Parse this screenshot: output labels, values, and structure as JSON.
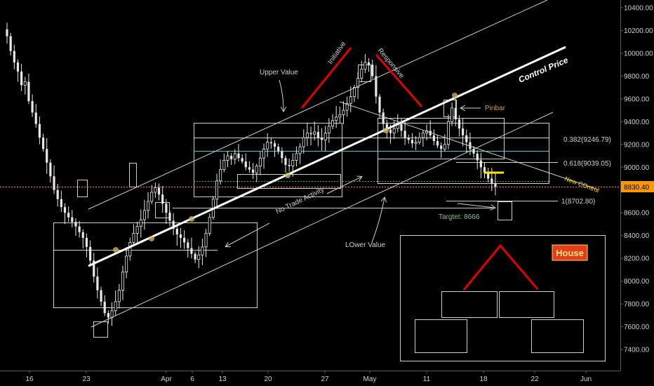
{
  "chart_data": {
    "type": "candlestick",
    "y_axis": {
      "ticks": [
        "10400.00",
        "10200.00",
        "10000.00",
        "9800.00",
        "9600.00",
        "9400.00",
        "9200.00",
        "9000.00",
        "8800.00",
        "8600.00",
        "8400.00",
        "8200.00",
        "8000.00",
        "7800.00",
        "7600.00",
        "7400.00"
      ],
      "ylim": [
        7290,
        10440
      ],
      "current_price": "8830.40"
    },
    "x_axis": {
      "labels": [
        "16",
        "23",
        "Apr",
        "6",
        "13",
        "20",
        "27",
        "May",
        "11",
        "18",
        "22",
        "Jun"
      ]
    },
    "annotations": {
      "control_price": "Control Price",
      "upper_value": "Upper Value",
      "lower_value": "LOwer Value",
      "no_trade": "No Trade Activity",
      "initiative": "Initiative",
      "responsive": "Responsive",
      "pinbar": "Pinbar",
      "new_control": "New COntrol",
      "target": "Targtet: 8666",
      "house": "House"
    },
    "fib_levels": [
      {
        "label": "0.382(9246.79)",
        "value": 9246.79
      },
      {
        "label": "0.618(9039.05)",
        "value": 9039.05
      },
      {
        "label": "1(8702.80)",
        "value": 8702.8
      }
    ],
    "colors": {
      "background": "#000000",
      "candles": "#e8e8e8",
      "annotation_red": "#e00000",
      "current_price": "#ff9800",
      "channel_line": "#ffffff",
      "fib_line": "#4fc3c7",
      "house_badge": "#e63c1e",
      "target_text": "#8fbc8f",
      "pinbar_text": "#c8a040"
    },
    "closes": [
      10150,
      10020,
      9920,
      9840,
      9720,
      9750,
      9580,
      9480,
      9380,
      9260,
      9160,
      9040,
      8920,
      8800,
      8720,
      8650,
      8600,
      8560,
      8520,
      8480,
      8430,
      8380,
      8300,
      8180,
      8040,
      7920,
      7820,
      7720,
      7680,
      7740,
      7820,
      7920,
      8080,
      8220,
      8340,
      8420,
      8480,
      8540,
      8620,
      8700,
      8780,
      8820,
      8760,
      8680,
      8600,
      8530,
      8460,
      8410,
      8380,
      8340,
      8290,
      8240,
      8190,
      8230,
      8300,
      8420,
      8560,
      8720,
      8880,
      8980,
      9060,
      9100,
      9070,
      9120,
      9080,
      9050,
      9000,
      8980,
      8950,
      9010,
      9080,
      9160,
      9220,
      9210,
      9180,
      9140,
      9080,
      9020,
      9010,
      9060,
      9120,
      9180,
      9260,
      9300,
      9290,
      9310,
      9260,
      9240,
      9300,
      9360,
      9410,
      9440,
      9460,
      9500,
      9560,
      9620,
      9700,
      9780,
      9860,
      9920,
      9900,
      9800,
      9620,
      9480,
      9380,
      9330,
      9300,
      9340,
      9380,
      9320,
      9260,
      9240,
      9210,
      9220,
      9260,
      9300,
      9320,
      9280,
      9230,
      9190,
      9160,
      9200,
      9400,
      9520,
      9420,
      9340,
      9280,
      9220,
      9160,
      9120,
      9060,
      9000,
      8950,
      8900,
      8860,
      8830
    ]
  }
}
